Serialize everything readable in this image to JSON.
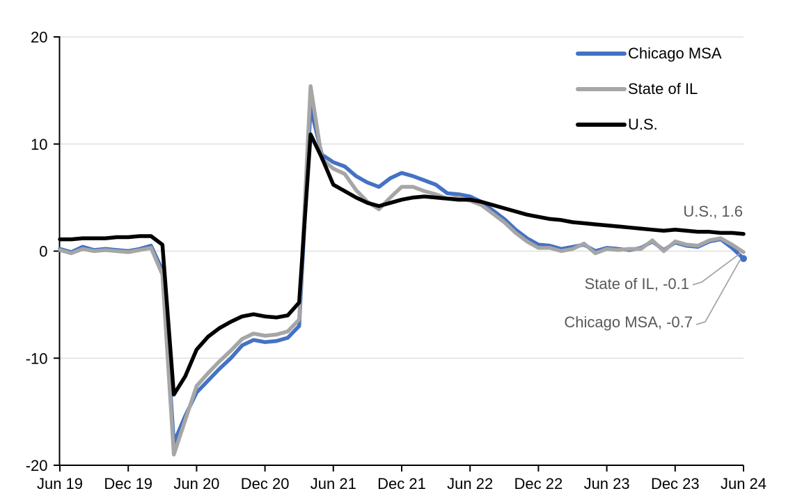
{
  "chart_data": {
    "type": "line",
    "title": "",
    "xlabel": "",
    "ylabel": "",
    "frequency": "monthly",
    "x_range": [
      "Jun 2019",
      "Jun 2024"
    ],
    "ylim": [
      -20,
      20
    ],
    "y_ticks": [
      20,
      10,
      0,
      -10,
      -20
    ],
    "x_tick_indices": [
      0,
      6,
      12,
      18,
      24,
      30,
      36,
      42,
      48,
      54,
      60
    ],
    "x_tick_labels": [
      "Jun 19",
      "Dec 19",
      "Jun 20",
      "Dec 20",
      "Jun 21",
      "Dec 21",
      "Jun 22",
      "Dec 22",
      "Jun 23",
      "Dec 23",
      "Jun 24"
    ],
    "grid": "horizontal",
    "legend_position": "top-right",
    "end_marker_series": "Chicago MSA",
    "series": [
      {
        "name": "Chicago MSA",
        "color": "#4472C4",
        "values": [
          0.2,
          -0.1,
          0.4,
          0.1,
          0.2,
          0.1,
          0.0,
          0.2,
          0.5,
          -1.8,
          -17.9,
          -15.4,
          -13.2,
          -12.1,
          -11.0,
          -10.0,
          -8.8,
          -8.3,
          -8.5,
          -8.4,
          -8.1,
          -7.0,
          13.4,
          9.0,
          8.3,
          7.9,
          7.0,
          6.4,
          6.0,
          6.8,
          7.3,
          7.0,
          6.6,
          6.2,
          5.4,
          5.3,
          5.1,
          4.6,
          3.8,
          3.0,
          2.0,
          1.2,
          0.6,
          0.5,
          0.2,
          0.4,
          0.6,
          0.0,
          0.3,
          0.2,
          0.1,
          0.3,
          0.9,
          0.1,
          0.8,
          0.5,
          0.4,
          0.9,
          1.1,
          0.3,
          -0.7
        ]
      },
      {
        "name": "State of IL",
        "color": "#A6A6A6",
        "values": [
          0.1,
          -0.2,
          0.2,
          0.0,
          0.1,
          0.0,
          -0.1,
          0.1,
          0.3,
          -2.2,
          -19.0,
          -15.8,
          -12.6,
          -11.4,
          -10.3,
          -9.3,
          -8.2,
          -7.7,
          -7.9,
          -7.8,
          -7.5,
          -6.4,
          15.4,
          8.6,
          7.7,
          7.2,
          5.7,
          4.6,
          3.9,
          5.0,
          6.0,
          6.0,
          5.6,
          5.3,
          4.9,
          5.0,
          4.7,
          4.3,
          3.5,
          2.7,
          1.7,
          0.9,
          0.3,
          0.3,
          0.0,
          0.2,
          0.7,
          -0.2,
          0.2,
          0.1,
          0.2,
          0.2,
          1.0,
          0.0,
          0.9,
          0.6,
          0.5,
          1.0,
          1.2,
          0.6,
          -0.1
        ]
      },
      {
        "name": "U.S.",
        "color": "#000000",
        "values": [
          1.1,
          1.1,
          1.2,
          1.2,
          1.2,
          1.3,
          1.3,
          1.4,
          1.4,
          0.6,
          -13.4,
          -11.7,
          -9.2,
          -8.0,
          -7.2,
          -6.6,
          -6.1,
          -5.9,
          -6.1,
          -6.2,
          -6.0,
          -4.8,
          10.9,
          8.7,
          6.2,
          5.6,
          5.0,
          4.5,
          4.2,
          4.5,
          4.8,
          5.0,
          5.1,
          5.0,
          4.9,
          4.8,
          4.8,
          4.6,
          4.3,
          4.0,
          3.7,
          3.4,
          3.2,
          3.0,
          2.9,
          2.7,
          2.6,
          2.5,
          2.4,
          2.3,
          2.2,
          2.1,
          2.0,
          1.9,
          2.0,
          1.9,
          1.8,
          1.8,
          1.7,
          1.7,
          1.6
        ]
      }
    ],
    "annotations": [
      {
        "series": "U.S.",
        "text": "U.S., 1.6",
        "value": 1.6
      },
      {
        "series": "State of IL",
        "text": "State of IL, -0.1",
        "value": -0.1
      },
      {
        "series": "Chicago MSA",
        "text": "Chicago MSA, -0.7",
        "value": -0.7
      }
    ]
  },
  "colors": {
    "background": "#FFFFFF",
    "axis": "#000000",
    "gridline": "#D9D9D9",
    "leader": "#A6A6A6",
    "annotation_text": "#595959",
    "legend_text": "#000000",
    "chicago_msa": "#4472C4",
    "state_of_il": "#A6A6A6",
    "us": "#000000"
  }
}
